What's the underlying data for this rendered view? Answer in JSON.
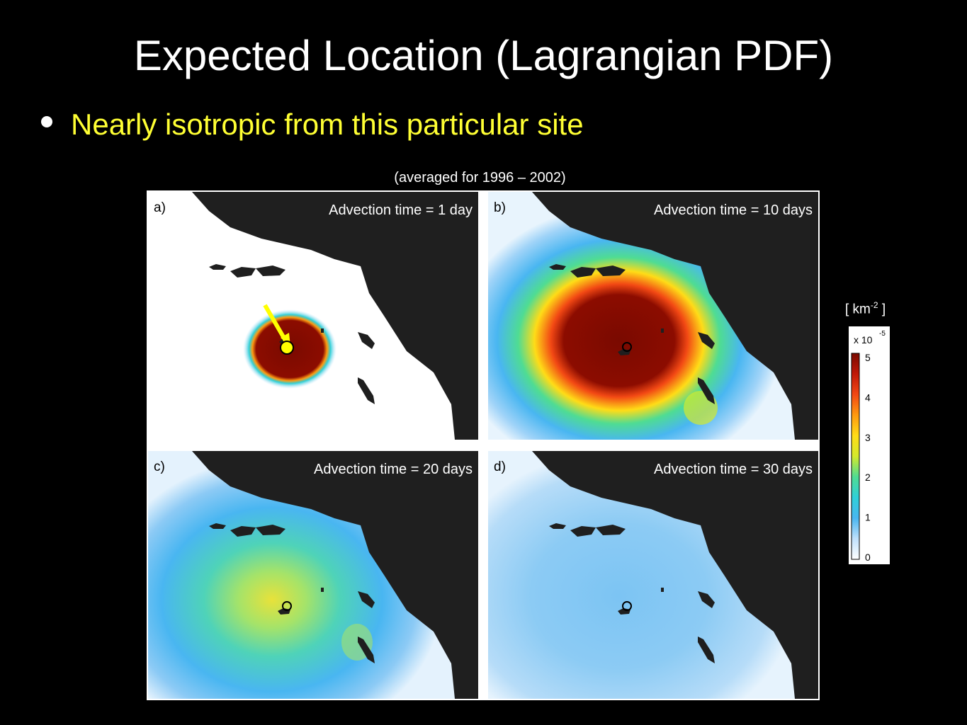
{
  "slide": {
    "title": "Expected Location (Lagrangian PDF)",
    "bullet": "Nearly isotropic from this particular site",
    "bullet_color": "#ffff33",
    "subtitle": "(averaged for 1996 – 2002)"
  },
  "panels": [
    {
      "letter": "a)",
      "label": "Advection time = 1 day"
    },
    {
      "letter": "b)",
      "label": "Advection time = 10 days"
    },
    {
      "letter": "c)",
      "label": "Advection time = 20 days"
    },
    {
      "letter": "d)",
      "label": "Advection time = 30 days"
    }
  ],
  "colorbar": {
    "unit_prefix": "[ km",
    "unit_exp": "-2",
    "unit_suffix": " ]",
    "scale_prefix": "x 10",
    "scale_exp": "-5",
    "ticks": [
      "5",
      "4",
      "3",
      "2",
      "1",
      "0"
    ],
    "colormap": [
      "#ffffff",
      "#bfe0fb",
      "#49b6f1",
      "#2fd0d8",
      "#4fdc93",
      "#d4ea2c",
      "#ffdc17",
      "#ff9a10",
      "#f24814",
      "#c11908",
      "#7a0a00"
    ]
  },
  "colors": {
    "land": "#1f1f1f",
    "release_marker": "#ffff00"
  }
}
